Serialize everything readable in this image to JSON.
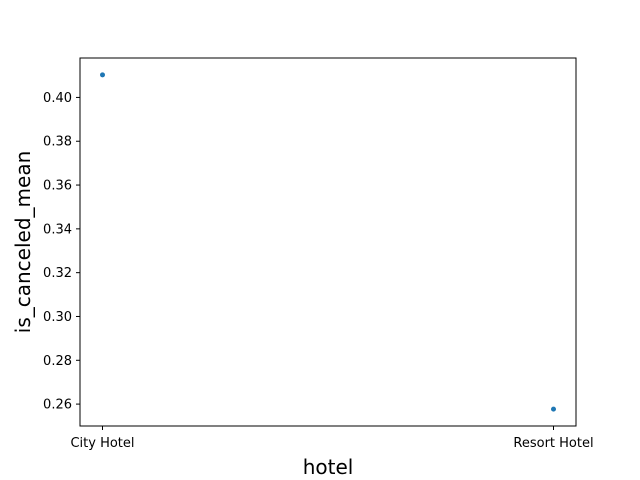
{
  "chart_data": {
    "type": "scatter",
    "categories": [
      "City Hotel",
      "Resort Hotel"
    ],
    "series": [
      {
        "values": [
          0.4103,
          0.2577
        ]
      }
    ],
    "xlabel": "hotel",
    "ylabel": "is_canceled_mean",
    "ylim": [
      0.25,
      0.418
    ],
    "yticks": [
      0.26,
      0.28,
      0.3,
      0.32,
      0.34,
      0.36,
      0.38,
      0.4
    ],
    "ytick_labels": [
      "0.26",
      "0.28",
      "0.30",
      "0.32",
      "0.34",
      "0.36",
      "0.38",
      "0.40"
    ],
    "grid": false,
    "legend": "none",
    "marker_color": "#1f77b4"
  }
}
